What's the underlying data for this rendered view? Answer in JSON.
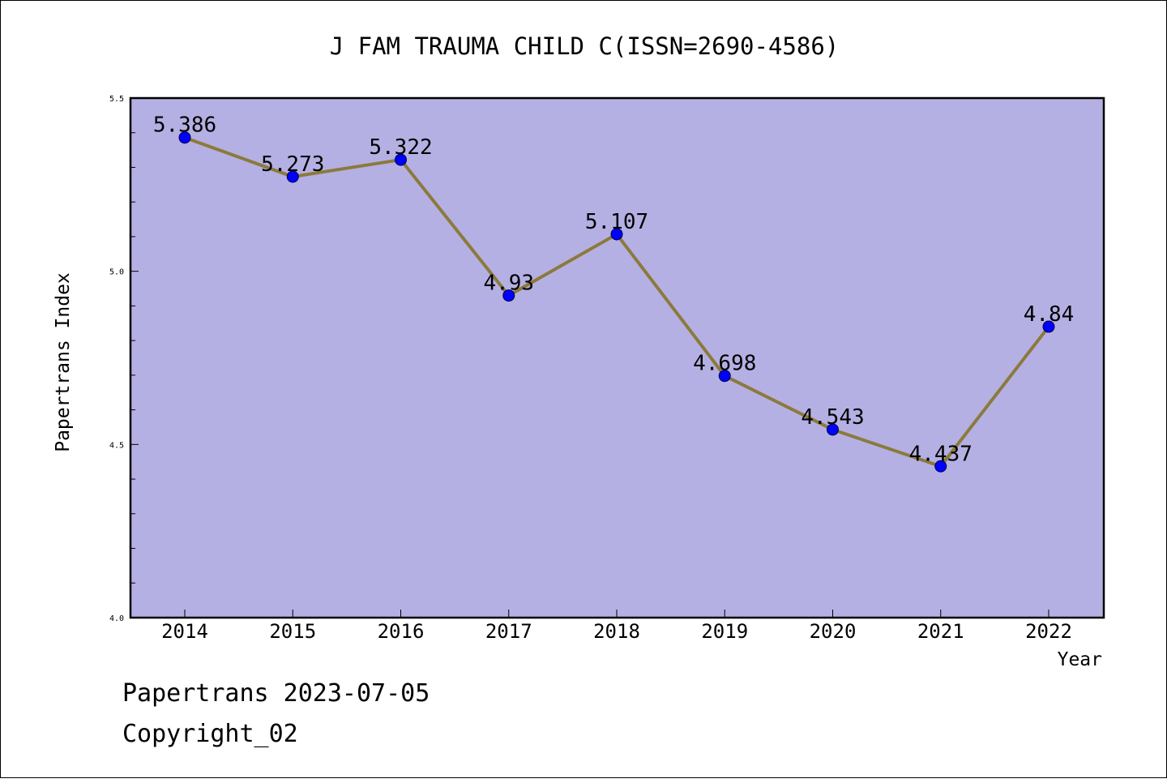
{
  "chart_data": {
    "type": "line",
    "title": "J FAM TRAUMA CHILD C(ISSN=2690-4586)",
    "xlabel": "Year",
    "ylabel": "Papertrans Index",
    "categories": [
      "2014",
      "2015",
      "2016",
      "2017",
      "2018",
      "2019",
      "2020",
      "2021",
      "2022"
    ],
    "values": [
      5.386,
      5.273,
      5.322,
      4.93,
      5.107,
      4.698,
      4.543,
      4.437,
      4.84
    ],
    "data_labels": [
      "5.386",
      "5.273",
      "5.322",
      "4.93",
      "5.107",
      "4.698",
      "4.543",
      "4.437",
      "4.84"
    ],
    "ylim": [
      4.0,
      5.5
    ],
    "y_ticks": [
      "4.0",
      "4.5",
      "5.0",
      "5.5"
    ],
    "grid": false,
    "colors": {
      "plot_background": "#b5b0e3",
      "line": "#8b7a3c",
      "marker": "#0000ff"
    }
  },
  "footer": {
    "line1": "Papertrans 2023-07-05",
    "line2": "Copyright_02"
  }
}
